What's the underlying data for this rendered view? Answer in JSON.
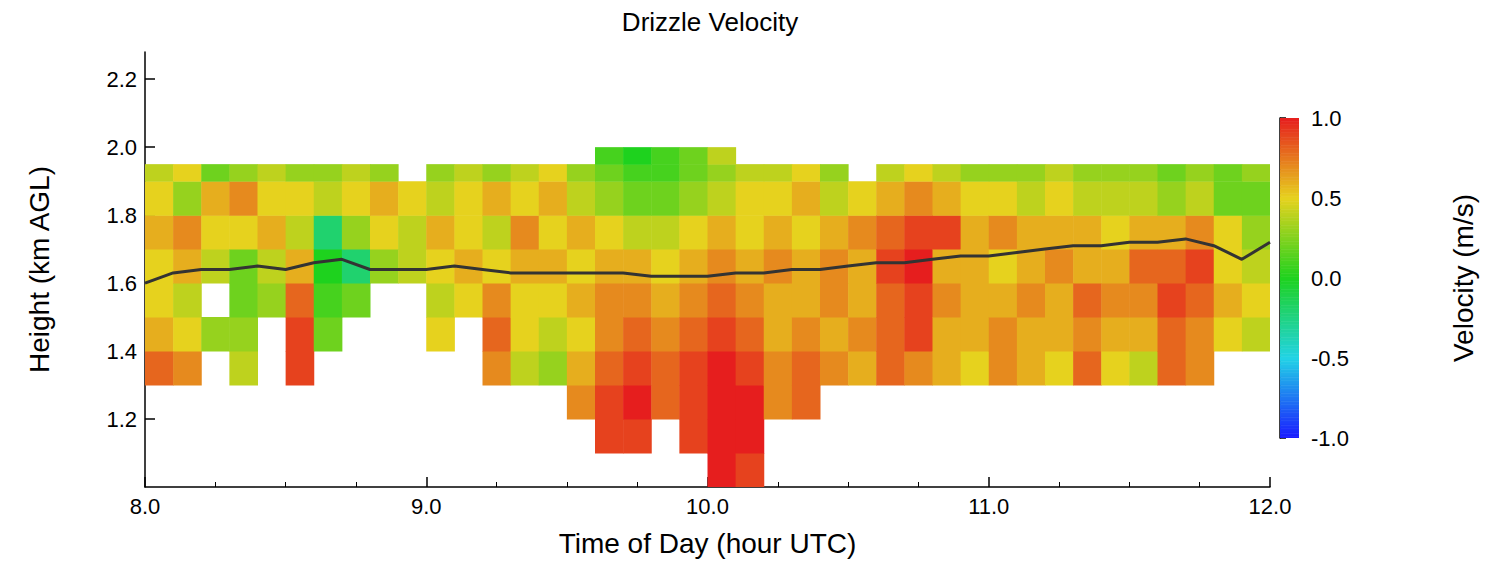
{
  "chart_data": {
    "type": "heatmap",
    "title": "Drizzle Velocity",
    "x_label": "Time of Day (hour UTC)",
    "y_label": "Height (km AGL)",
    "xlim": [
      8,
      12
    ],
    "xticks": [
      {
        "value": 8,
        "label": "8.0"
      },
      {
        "value": 9,
        "label": "9.0"
      },
      {
        "value": 10,
        "label": "10.0"
      },
      {
        "value": 11,
        "label": "11.0"
      },
      {
        "value": 12,
        "label": "12.0"
      }
    ],
    "ylim": [
      1.0,
      2.28
    ],
    "yticks": [
      1.2,
      1.4,
      1.6,
      1.8,
      {
        "value": 2,
        "label": "2.0"
      },
      2.2
    ],
    "time_edges": [
      8.0,
      8.1,
      8.2,
      8.3,
      8.4,
      8.5,
      8.6,
      8.7,
      8.8,
      8.9,
      9.0,
      9.1,
      9.2,
      9.3,
      9.4,
      9.5,
      9.6,
      9.7,
      9.8,
      9.9,
      10.0,
      10.1,
      10.2,
      10.3,
      10.4,
      10.5,
      10.6,
      10.7,
      10.8,
      10.9,
      11.0,
      11.1,
      11.2,
      11.3,
      11.4,
      11.5,
      11.6,
      11.7,
      11.8,
      11.9,
      12.0
    ],
    "height_edges": [
      1.0,
      1.1,
      1.2,
      1.3,
      1.4,
      1.5,
      1.6,
      1.7,
      1.8,
      1.9,
      1.95,
      2.0
    ],
    "velocity": [
      [
        null,
        null,
        null,
        0.8,
        0.6,
        0.5,
        0.5,
        0.6,
        0.5,
        0.4,
        null
      ],
      [
        null,
        null,
        null,
        0.7,
        0.5,
        0.4,
        0.6,
        0.7,
        0.3,
        0.5,
        null
      ],
      [
        null,
        null,
        null,
        null,
        0.3,
        null,
        0.4,
        0.5,
        0.6,
        0.2,
        null
      ],
      [
        null,
        null,
        null,
        0.4,
        0.3,
        0.2,
        0.2,
        0.5,
        0.7,
        0.3,
        null
      ],
      [
        null,
        null,
        null,
        null,
        null,
        0.3,
        0.4,
        0.6,
        0.5,
        0.4,
        null
      ],
      [
        null,
        null,
        null,
        0.9,
        0.9,
        0.8,
        0.6,
        0.4,
        0.5,
        0.3,
        null
      ],
      [
        null,
        null,
        null,
        null,
        0.2,
        0.1,
        0.0,
        -0.2,
        0.4,
        0.3,
        null
      ],
      [
        null,
        null,
        null,
        null,
        null,
        0.2,
        -0.2,
        0.3,
        0.5,
        0.4,
        null
      ],
      [
        null,
        null,
        null,
        null,
        null,
        null,
        0.3,
        0.5,
        0.6,
        0.3,
        null
      ],
      [
        null,
        null,
        null,
        null,
        null,
        null,
        0.4,
        0.4,
        0.5,
        null,
        null
      ],
      [
        null,
        null,
        null,
        null,
        0.5,
        0.4,
        0.5,
        0.6,
        0.4,
        0.3,
        null
      ],
      [
        null,
        null,
        null,
        null,
        null,
        0.5,
        0.6,
        0.5,
        0.5,
        0.4,
        null
      ],
      [
        null,
        null,
        null,
        0.7,
        0.8,
        0.7,
        0.5,
        0.4,
        0.6,
        0.3,
        null
      ],
      [
        null,
        null,
        null,
        0.4,
        0.5,
        0.5,
        0.6,
        0.7,
        0.5,
        0.4,
        null
      ],
      [
        null,
        null,
        null,
        0.3,
        0.4,
        0.5,
        0.6,
        0.5,
        0.6,
        0.5,
        null
      ],
      [
        null,
        null,
        0.7,
        0.6,
        0.5,
        0.6,
        0.5,
        0.6,
        0.4,
        0.3,
        null
      ],
      [
        null,
        0.9,
        0.9,
        0.8,
        0.7,
        0.7,
        0.6,
        0.5,
        0.3,
        0.2,
        0.1
      ],
      [
        null,
        0.9,
        1.0,
        0.9,
        0.8,
        0.7,
        0.6,
        0.4,
        0.2,
        0.1,
        0.0
      ],
      [
        null,
        null,
        0.8,
        0.8,
        0.7,
        0.6,
        0.5,
        0.4,
        0.2,
        0.1,
        0.1
      ],
      [
        null,
        0.9,
        0.9,
        0.9,
        0.8,
        0.7,
        0.6,
        0.5,
        0.3,
        0.2,
        0.2
      ],
      [
        1.0,
        1.0,
        1.0,
        1.0,
        0.9,
        0.8,
        0.7,
        0.6,
        0.4,
        0.3,
        0.4
      ],
      [
        0.9,
        1.0,
        1.0,
        0.9,
        0.8,
        0.7,
        0.6,
        0.5,
        0.5,
        0.4,
        null
      ],
      [
        null,
        null,
        0.7,
        0.7,
        0.6,
        0.6,
        0.7,
        0.6,
        0.5,
        0.4,
        null
      ],
      [
        null,
        null,
        0.8,
        0.8,
        0.7,
        0.6,
        0.6,
        0.5,
        0.6,
        0.5,
        null
      ],
      [
        null,
        null,
        null,
        0.7,
        0.6,
        0.7,
        0.7,
        0.6,
        0.4,
        0.3,
        null
      ],
      [
        null,
        null,
        null,
        0.6,
        0.7,
        0.6,
        0.6,
        0.7,
        0.5,
        null,
        null
      ],
      [
        null,
        null,
        null,
        0.8,
        0.8,
        0.8,
        0.9,
        0.8,
        0.6,
        0.4,
        null
      ],
      [
        null,
        null,
        null,
        0.7,
        0.9,
        0.9,
        1.0,
        0.9,
        0.7,
        0.5,
        null
      ],
      [
        null,
        null,
        null,
        0.6,
        0.6,
        0.7,
        0.6,
        0.9,
        0.6,
        0.4,
        null
      ],
      [
        null,
        null,
        null,
        0.5,
        0.6,
        0.6,
        0.6,
        0.6,
        0.5,
        0.3,
        null
      ],
      [
        null,
        null,
        null,
        0.7,
        0.7,
        0.6,
        0.5,
        0.7,
        0.5,
        0.3,
        null
      ],
      [
        null,
        null,
        null,
        0.6,
        0.6,
        0.7,
        0.6,
        0.6,
        0.4,
        0.3,
        null
      ],
      [
        null,
        null,
        null,
        0.5,
        0.6,
        0.6,
        0.7,
        0.6,
        0.5,
        0.4,
        null
      ],
      [
        null,
        null,
        null,
        0.8,
        0.7,
        0.8,
        0.6,
        0.6,
        0.4,
        0.3,
        null
      ],
      [
        null,
        null,
        null,
        0.5,
        0.6,
        0.7,
        0.6,
        0.5,
        0.4,
        0.3,
        null
      ],
      [
        null,
        null,
        null,
        0.4,
        0.6,
        0.7,
        0.8,
        0.6,
        0.4,
        0.3,
        null
      ],
      [
        null,
        null,
        null,
        0.8,
        0.8,
        0.9,
        0.8,
        0.6,
        0.3,
        0.2,
        null
      ],
      [
        null,
        null,
        null,
        0.7,
        0.7,
        0.8,
        0.9,
        0.7,
        0.4,
        0.3,
        null
      ],
      [
        null,
        null,
        null,
        null,
        0.5,
        0.6,
        0.5,
        0.5,
        0.2,
        0.2,
        null
      ],
      [
        null,
        null,
        null,
        null,
        0.4,
        0.5,
        0.4,
        0.3,
        0.2,
        0.3,
        null
      ]
    ],
    "colorbar": {
      "label": "Velocity (m/s)",
      "range": [
        -1,
        1
      ],
      "ticks": [
        {
          "value": -1,
          "label": "-1.0"
        },
        -0.5,
        {
          "value": 0,
          "label": "0.0"
        },
        0.5,
        {
          "value": 1,
          "label": "1.0"
        }
      ],
      "colors": [
        "#1a1aff",
        "#22d3e6",
        "#1ed21e",
        "#e6d21e",
        "#e61e1e"
      ]
    },
    "line": {
      "x": [
        8.0,
        8.1,
        8.2,
        8.3,
        8.4,
        8.5,
        8.6,
        8.7,
        8.8,
        8.9,
        9.0,
        9.1,
        9.2,
        9.3,
        9.4,
        9.5,
        9.6,
        9.7,
        9.8,
        9.9,
        10.0,
        10.1,
        10.2,
        10.3,
        10.4,
        10.5,
        10.6,
        10.7,
        10.8,
        10.9,
        11.0,
        11.1,
        11.2,
        11.3,
        11.4,
        11.5,
        11.6,
        11.7,
        11.8,
        11.9,
        12.0
      ],
      "values": [
        1.6,
        1.63,
        1.64,
        1.64,
        1.65,
        1.64,
        1.66,
        1.67,
        1.64,
        1.64,
        1.64,
        1.65,
        1.64,
        1.63,
        1.63,
        1.63,
        1.63,
        1.63,
        1.62,
        1.62,
        1.62,
        1.63,
        1.63,
        1.64,
        1.64,
        1.65,
        1.66,
        1.66,
        1.67,
        1.68,
        1.68,
        1.69,
        1.7,
        1.71,
        1.71,
        1.72,
        1.72,
        1.73,
        1.71,
        1.67,
        1.72
      ],
      "color": "#333333"
    }
  }
}
